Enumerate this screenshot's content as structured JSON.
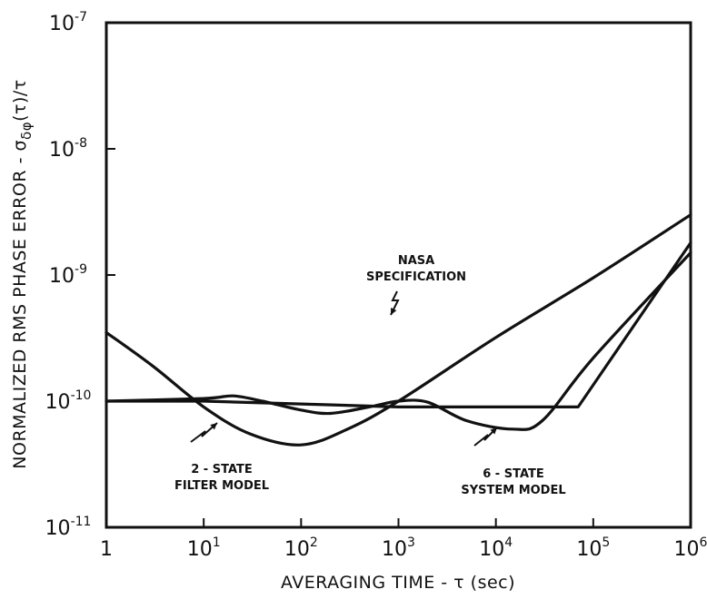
{
  "chart_data": {
    "type": "line",
    "xlabel": "AVERAGING TIME - τ (sec)",
    "ylabel": "NORMALIZED RMS PHASE ERROR - σ",
    "ylabel_sub": "δφ",
    "ylabel_tail": "(τ)/τ",
    "xscale": "log",
    "yscale": "log",
    "xlim": [
      1,
      1000000
    ],
    "ylim": [
      1e-11,
      1e-07
    ],
    "grid": false,
    "x_ticks": [
      {
        "base": "1",
        "exp": ""
      },
      {
        "base": "10",
        "exp": "1"
      },
      {
        "base": "10",
        "exp": "2"
      },
      {
        "base": "10",
        "exp": "3"
      },
      {
        "base": "10",
        "exp": "4"
      },
      {
        "base": "10",
        "exp": "5"
      },
      {
        "base": "10",
        "exp": "6"
      }
    ],
    "y_ticks": [
      {
        "base": "10",
        "exp": "-11"
      },
      {
        "base": "10",
        "exp": "-10"
      },
      {
        "base": "10",
        "exp": "-9"
      },
      {
        "base": "10",
        "exp": "-8"
      },
      {
        "base": "10",
        "exp": "-7"
      }
    ],
    "series": [
      {
        "name": "NASA SPECIFICATION",
        "x": [
          1,
          10,
          100,
          1000,
          10000,
          70000,
          1000000
        ],
        "y": [
          1e-10,
          1e-10,
          9.5e-11,
          9e-11,
          9e-11,
          9e-11,
          1.8e-09
        ]
      },
      {
        "name": "2 - STATE FILTER MODEL",
        "x": [
          1,
          3,
          10,
          30,
          100,
          300,
          1000,
          10000,
          100000,
          1000000
        ],
        "y": [
          3.5e-10,
          1.9e-10,
          9e-11,
          5.5e-11,
          4.5e-11,
          6e-11,
          1e-10,
          3.2e-10,
          9.5e-10,
          3e-09
        ]
      },
      {
        "name": "6 - STATE SYSTEM MODEL",
        "x": [
          1,
          10,
          20,
          40,
          100,
          200,
          500,
          1000,
          2000,
          5000,
          15000,
          30000,
          100000,
          1000000
        ],
        "y": [
          1e-10,
          1.05e-10,
          1.1e-10,
          1e-10,
          8.5e-11,
          8e-11,
          9e-11,
          1e-10,
          9.8e-11,
          7e-11,
          6e-11,
          7e-11,
          2.2e-10,
          1.5e-09
        ]
      }
    ],
    "annotations": [
      {
        "series": "NASA SPECIFICATION",
        "lines": [
          "NASA",
          "SPECIFICATION"
        ]
      },
      {
        "series": "2 - STATE FILTER MODEL",
        "lines": [
          "2 - STATE",
          "FILTER MODEL"
        ]
      },
      {
        "series": "6 - STATE SYSTEM MODEL",
        "lines": [
          "6 - STATE",
          "SYSTEM MODEL"
        ]
      }
    ]
  }
}
